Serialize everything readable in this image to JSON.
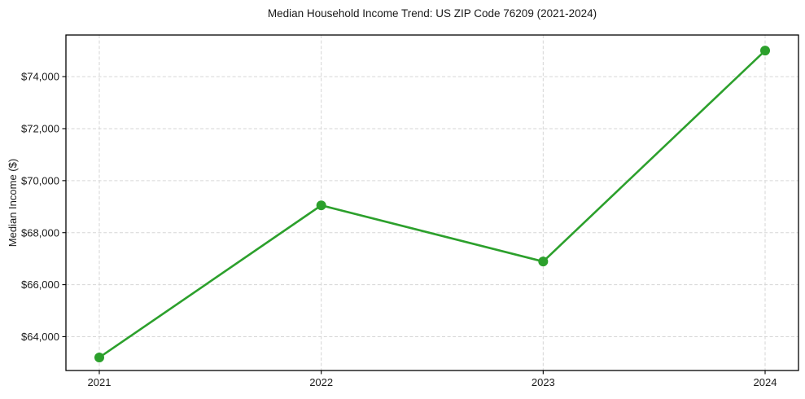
{
  "chart_data": {
    "type": "line",
    "title": "Median Household Income Trend: US ZIP Code 76209 (2021-2024)",
    "xlabel": "",
    "ylabel": "Median Income ($)",
    "categories": [
      "2021",
      "2022",
      "2023",
      "2024"
    ],
    "series": [
      {
        "values": [
          63200,
          69050,
          66890,
          75000
        ],
        "color": "#2ca02c",
        "marker": "circle"
      }
    ],
    "ylim": [
      62700,
      75600
    ],
    "yticks": [
      64000,
      66000,
      68000,
      70000,
      72000,
      74000
    ],
    "ytick_labels": [
      "$64,000",
      "$66,000",
      "$68,000",
      "$70,000",
      "$72,000",
      "$74,000"
    ],
    "xtick_labels": [
      "2021",
      "2022",
      "2023",
      "2024"
    ],
    "grid": {
      "visible": true,
      "style": "dashed",
      "color": "#d6d6d6"
    },
    "legend": {
      "visible": false
    },
    "background_color": "#ffffff",
    "spine_color": "#000000",
    "text_color": "#1a1a1a"
  }
}
